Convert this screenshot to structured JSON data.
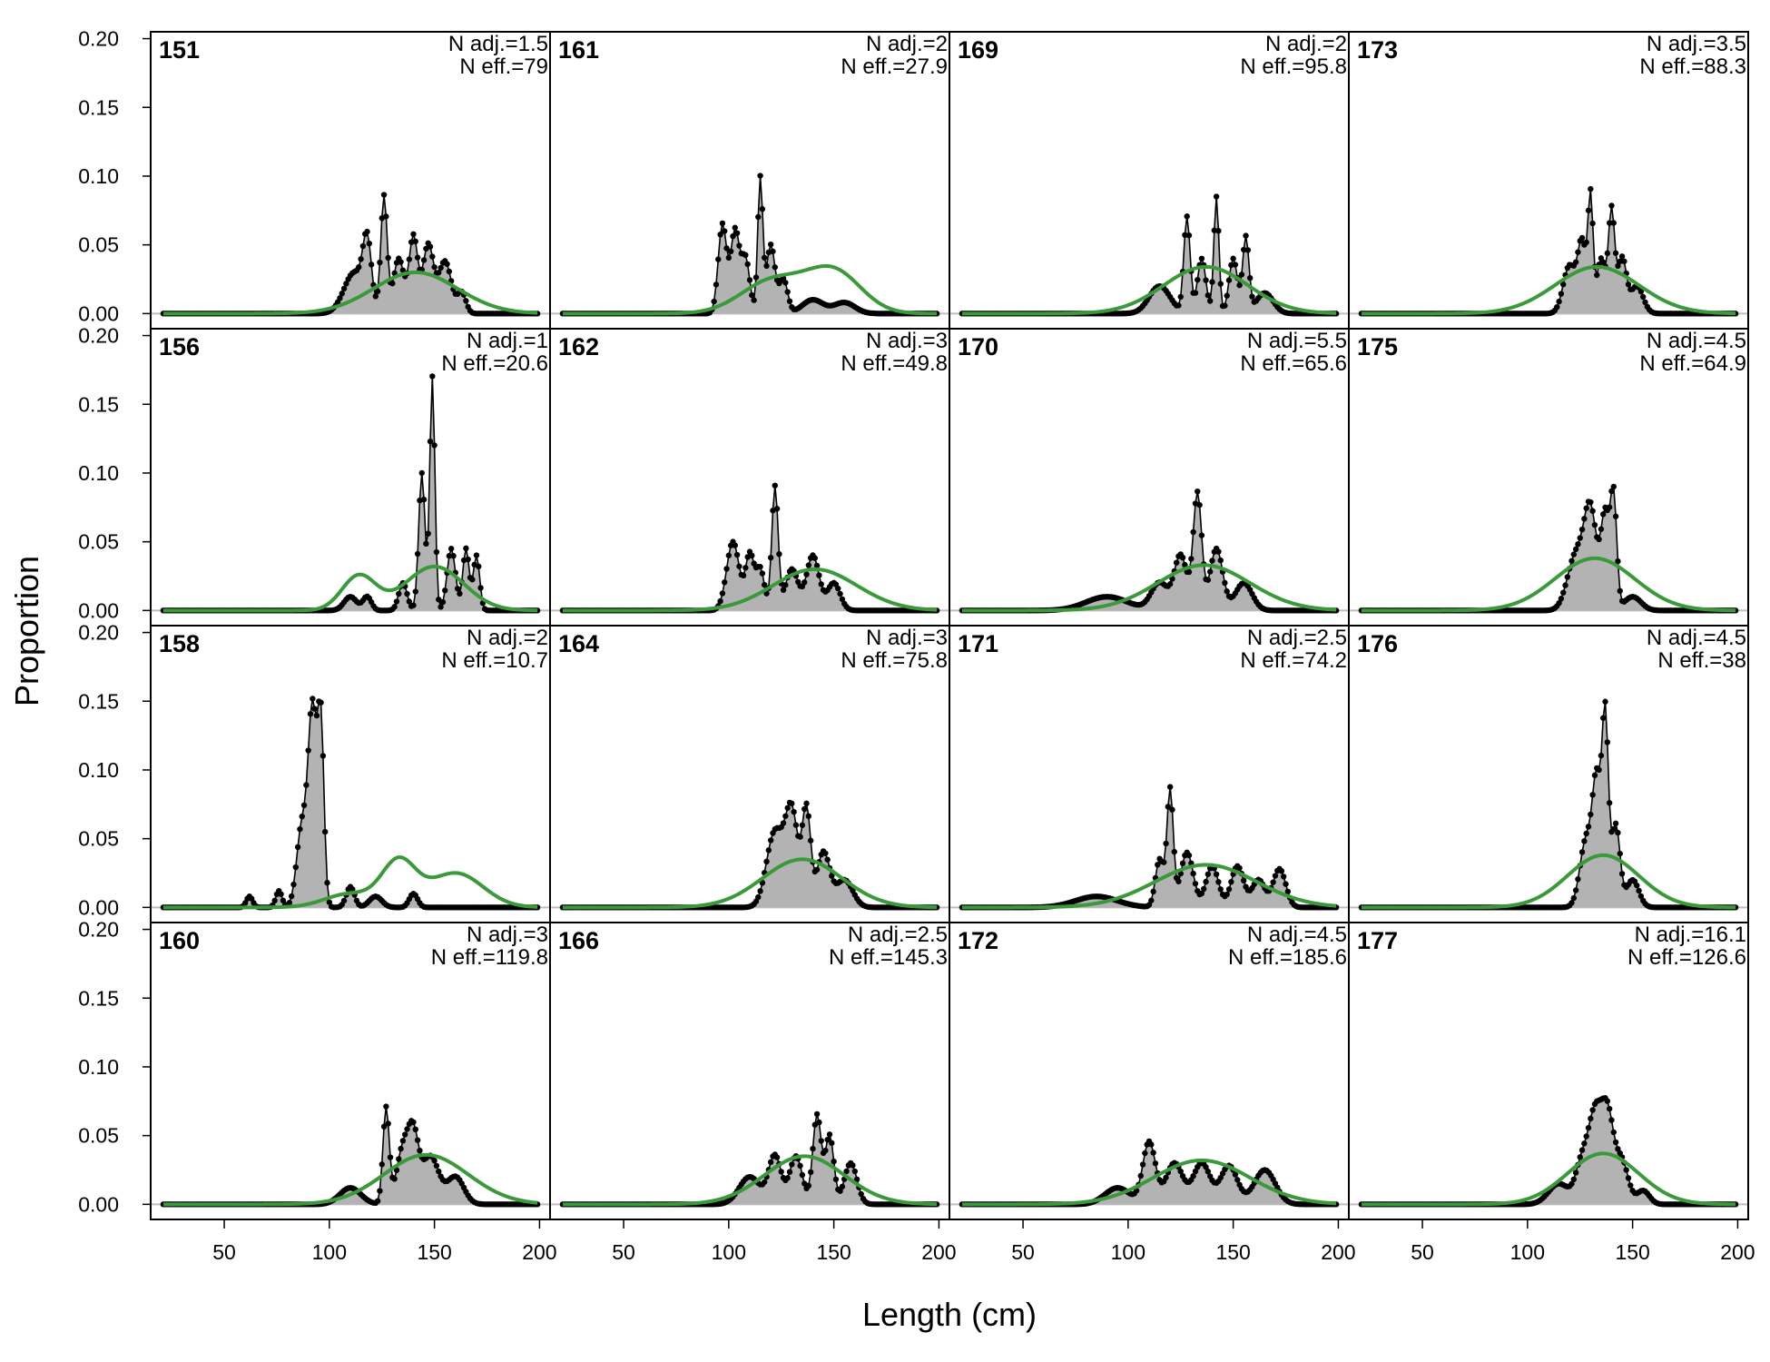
{
  "chart_data": {
    "type": "area",
    "xlabel": "Length (cm)",
    "ylabel": "Proportion",
    "xlim": [
      15,
      205
    ],
    "ylim": [
      -0.011,
      0.205
    ],
    "x_ticks": [
      "50",
      "100",
      "150",
      "200"
    ],
    "y_ticks": [
      "0.00",
      "0.05",
      "0.10",
      "0.15",
      "0.20"
    ],
    "grid": false,
    "legend": "none",
    "colors": {
      "observed_fill": "#b3b3b3",
      "observed_line": "#000000",
      "expected_line": "#3a9a3a",
      "zero_line": "#bfbfbf"
    },
    "series_types": {
      "observed": "grey area with black connected points",
      "expected": "green line"
    },
    "panels": [
      {
        "id": "151",
        "adj_label": "N adj.=1.5",
        "eff_label": "N eff.=79",
        "obs_peaks": [
          [
            112,
            0.03,
            5
          ],
          [
            118,
            0.045,
            2
          ],
          [
            126,
            0.085,
            1.5
          ],
          [
            133,
            0.04,
            2.5
          ],
          [
            140,
            0.056,
            2
          ],
          [
            147,
            0.05,
            2.5
          ],
          [
            155,
            0.038,
            3
          ],
          [
            163,
            0.015,
            2
          ]
        ],
        "exp_curve": [
          [
            141,
            0.03,
            20
          ]
        ]
      },
      {
        "id": "156",
        "adj_label": "N adj.=1",
        "eff_label": "N eff.=20.6",
        "obs_peaks": [
          [
            110,
            0.01,
            3
          ],
          [
            118,
            0.01,
            2
          ],
          [
            135,
            0.02,
            2
          ],
          [
            144,
            0.1,
            1.5
          ],
          [
            149,
            0.17,
            1.2
          ],
          [
            158,
            0.045,
            2
          ],
          [
            165,
            0.045,
            1.5
          ],
          [
            170,
            0.04,
            1.5
          ]
        ],
        "exp_curve": [
          [
            114,
            0.025,
            8
          ],
          [
            150,
            0.032,
            14
          ]
        ]
      },
      {
        "id": "158",
        "adj_label": "N adj.=2",
        "eff_label": "N eff.=10.7",
        "obs_peaks": [
          [
            62,
            0.008,
            1.5
          ],
          [
            76,
            0.012,
            1.5
          ],
          [
            87,
            0.06,
            2.5
          ],
          [
            92,
            0.14,
            2
          ],
          [
            96,
            0.13,
            1.5
          ],
          [
            110,
            0.015,
            2
          ],
          [
            122,
            0.008,
            3
          ],
          [
            140,
            0.01,
            2
          ]
        ],
        "exp_curve": [
          [
            110,
            0.01,
            12
          ],
          [
            133,
            0.032,
            8
          ],
          [
            160,
            0.025,
            13
          ]
        ]
      },
      {
        "id": "160",
        "adj_label": "N adj.=3",
        "eff_label": "N eff.=119.8",
        "obs_peaks": [
          [
            110,
            0.012,
            5
          ],
          [
            127,
            0.07,
            1.5
          ],
          [
            135,
            0.04,
            3
          ],
          [
            140,
            0.045,
            2.5
          ],
          [
            148,
            0.035,
            4
          ],
          [
            160,
            0.02,
            4
          ]
        ],
        "exp_curve": [
          [
            146,
            0.036,
            20
          ]
        ]
      },
      {
        "id": "161",
        "adj_label": "N adj.=2",
        "eff_label": "N eff.=27.9",
        "obs_peaks": [
          [
            97,
            0.065,
            2
          ],
          [
            103,
            0.06,
            2
          ],
          [
            108,
            0.04,
            2
          ],
          [
            115,
            0.098,
            1.2
          ],
          [
            120,
            0.05,
            2
          ],
          [
            126,
            0.025,
            2
          ],
          [
            140,
            0.01,
            5
          ],
          [
            155,
            0.008,
            5
          ]
        ],
        "exp_curve": [
          [
            121,
            0.024,
            15
          ],
          [
            150,
            0.03,
            13
          ]
        ]
      },
      {
        "id": "162",
        "adj_label": "N adj.=3",
        "eff_label": "N eff.=49.8",
        "obs_peaks": [
          [
            102,
            0.05,
            3
          ],
          [
            110,
            0.04,
            2
          ],
          [
            115,
            0.03,
            2
          ],
          [
            122,
            0.09,
            1.5
          ],
          [
            130,
            0.03,
            3
          ],
          [
            140,
            0.04,
            3
          ],
          [
            150,
            0.02,
            3
          ]
        ],
        "exp_curve": [
          [
            141,
            0.03,
            20
          ]
        ]
      },
      {
        "id": "164",
        "adj_label": "N adj.=3",
        "eff_label": "N eff.=75.8",
        "obs_peaks": [
          [
            122,
            0.055,
            4
          ],
          [
            130,
            0.068,
            3
          ],
          [
            137,
            0.07,
            2
          ],
          [
            145,
            0.04,
            3
          ],
          [
            155,
            0.02,
            4
          ]
        ],
        "exp_curve": [
          [
            135,
            0.035,
            19
          ]
        ]
      },
      {
        "id": "166",
        "adj_label": "N adj.=2.5",
        "eff_label": "N eff.=145.3",
        "obs_peaks": [
          [
            110,
            0.02,
            5
          ],
          [
            122,
            0.035,
            3
          ],
          [
            132,
            0.035,
            3
          ],
          [
            142,
            0.065,
            2
          ],
          [
            148,
            0.05,
            2
          ],
          [
            158,
            0.03,
            3
          ]
        ],
        "exp_curve": [
          [
            136,
            0.035,
            19
          ]
        ]
      },
      {
        "id": "169",
        "adj_label": "N adj.=2",
        "eff_label": "N eff.=95.8",
        "obs_peaks": [
          [
            115,
            0.02,
            5
          ],
          [
            128,
            0.07,
            1.5
          ],
          [
            135,
            0.04,
            2
          ],
          [
            142,
            0.085,
            1.2
          ],
          [
            150,
            0.04,
            2
          ],
          [
            156,
            0.055,
            1.5
          ],
          [
            165,
            0.015,
            4
          ]
        ],
        "exp_curve": [
          [
            137,
            0.034,
            20
          ]
        ]
      },
      {
        "id": "170",
        "adj_label": "N adj.=5.5",
        "eff_label": "N eff.=65.6",
        "obs_peaks": [
          [
            90,
            0.01,
            10
          ],
          [
            115,
            0.02,
            4
          ],
          [
            125,
            0.04,
            3
          ],
          [
            133,
            0.085,
            2
          ],
          [
            142,
            0.045,
            3
          ],
          [
            155,
            0.02,
            4
          ]
        ],
        "exp_curve": [
          [
            136,
            0.033,
            22
          ]
        ]
      },
      {
        "id": "171",
        "adj_label": "N adj.=2.5",
        "eff_label": "N eff.=74.2",
        "obs_peaks": [
          [
            85,
            0.008,
            10
          ],
          [
            115,
            0.035,
            2
          ],
          [
            120,
            0.085,
            1.5
          ],
          [
            128,
            0.04,
            3
          ],
          [
            140,
            0.03,
            3
          ],
          [
            152,
            0.03,
            3
          ],
          [
            162,
            0.02,
            3
          ],
          [
            172,
            0.028,
            3
          ]
        ],
        "exp_curve": [
          [
            137,
            0.031,
            24
          ]
        ]
      },
      {
        "id": "172",
        "adj_label": "N adj.=4.5",
        "eff_label": "N eff.=185.6",
        "obs_peaks": [
          [
            95,
            0.012,
            6
          ],
          [
            110,
            0.045,
            3
          ],
          [
            122,
            0.03,
            4
          ],
          [
            135,
            0.03,
            4
          ],
          [
            148,
            0.028,
            4
          ],
          [
            165,
            0.025,
            5
          ]
        ],
        "exp_curve": [
          [
            135,
            0.032,
            23
          ]
        ]
      },
      {
        "id": "173",
        "adj_label": "N adj.=3.5",
        "eff_label": "N eff.=88.3",
        "obs_peaks": [
          [
            120,
            0.035,
            3
          ],
          [
            126,
            0.05,
            2
          ],
          [
            130,
            0.082,
            1.2
          ],
          [
            135,
            0.04,
            2
          ],
          [
            140,
            0.075,
            1.5
          ],
          [
            145,
            0.04,
            2
          ],
          [
            152,
            0.02,
            3
          ]
        ],
        "exp_curve": [
          [
            133,
            0.034,
            20
          ]
        ]
      },
      {
        "id": "175",
        "adj_label": "N adj.=4.5",
        "eff_label": "N eff.=64.9",
        "obs_peaks": [
          [
            123,
            0.04,
            4
          ],
          [
            130,
            0.07,
            3
          ],
          [
            137,
            0.068,
            2
          ],
          [
            141,
            0.08,
            1.5
          ],
          [
            150,
            0.01,
            4
          ]
        ],
        "exp_curve": [
          [
            132,
            0.038,
            19
          ]
        ]
      },
      {
        "id": "176",
        "adj_label": "N adj.=4.5",
        "eff_label": "N eff.=38",
        "obs_peaks": [
          [
            128,
            0.05,
            3
          ],
          [
            133,
            0.085,
            2
          ],
          [
            137,
            0.135,
            1.5
          ],
          [
            142,
            0.06,
            2
          ],
          [
            150,
            0.02,
            3
          ]
        ],
        "exp_curve": [
          [
            136,
            0.038,
            17
          ]
        ]
      },
      {
        "id": "177",
        "adj_label": "N adj.=16.1",
        "eff_label": "N eff.=126.6",
        "obs_peaks": [
          [
            115,
            0.015,
            5
          ],
          [
            126,
            0.03,
            3
          ],
          [
            132,
            0.06,
            3
          ],
          [
            138,
            0.065,
            3
          ],
          [
            145,
            0.03,
            3
          ],
          [
            155,
            0.01,
            3
          ]
        ],
        "exp_curve": [
          [
            136,
            0.037,
            17
          ]
        ]
      }
    ]
  }
}
